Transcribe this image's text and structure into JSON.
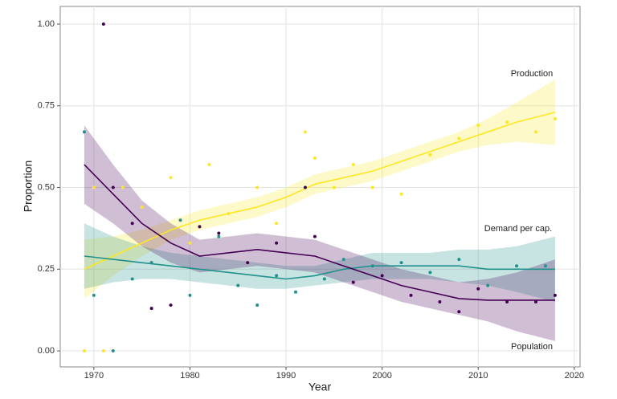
{
  "chart_data": {
    "type": "line",
    "x_label": "Year",
    "y_label": "Proportion",
    "xlim": [
      1966.5,
      2020.6
    ],
    "ylim": [
      -0.049,
      1.054
    ],
    "xticks": [
      1970,
      1980,
      1990,
      2000,
      2010,
      2020
    ],
    "yticks": [
      {
        "value": 0,
        "label": "0.00"
      },
      {
        "value": 0.25,
        "label": "0.25"
      },
      {
        "value": 0.5,
        "label": "0.50"
      },
      {
        "value": 0.75,
        "label": "0.75"
      },
      {
        "value": 1,
        "label": "1.00"
      }
    ],
    "grid": true,
    "x": [
      1969,
      1972,
      1975,
      1978,
      1981,
      1984,
      1987,
      1990,
      1993,
      1996,
      1999,
      2002,
      2005,
      2008,
      2011,
      2014,
      2018
    ],
    "series": [
      {
        "name": "Production",
        "color": "#fde725",
        "values": [
          0.25,
          0.29,
          0.33,
          0.37,
          0.4,
          0.42,
          0.44,
          0.47,
          0.51,
          0.53,
          0.55,
          0.58,
          0.61,
          0.64,
          0.67,
          0.7,
          0.73
        ],
        "lower": [
          0.16,
          0.23,
          0.29,
          0.34,
          0.37,
          0.39,
          0.41,
          0.44,
          0.48,
          0.5,
          0.52,
          0.55,
          0.58,
          0.61,
          0.63,
          0.64,
          0.63
        ],
        "upper": [
          0.34,
          0.35,
          0.37,
          0.4,
          0.43,
          0.45,
          0.47,
          0.5,
          0.54,
          0.56,
          0.58,
          0.61,
          0.64,
          0.67,
          0.71,
          0.76,
          0.83
        ],
        "points": {
          "x": [
            1969,
            1970,
            1971,
            1973,
            1975,
            1978,
            1980,
            1982,
            1984,
            1987,
            1989,
            1992,
            1993,
            1995,
            1997,
            1999,
            2002,
            2005,
            2008,
            2010,
            2013,
            2016,
            2018
          ],
          "y": [
            0,
            0.5,
            0,
            0.5,
            0.44,
            0.53,
            0.33,
            0.57,
            0.42,
            0.5,
            0.39,
            0.67,
            0.59,
            0.5,
            0.57,
            0.5,
            0.48,
            0.6,
            0.65,
            0.69,
            0.7,
            0.67,
            0.71
          ]
        }
      },
      {
        "name": "Demand per cap.",
        "color": "#21918c",
        "values": [
          0.29,
          0.28,
          0.27,
          0.26,
          0.25,
          0.24,
          0.23,
          0.22,
          0.23,
          0.25,
          0.26,
          0.26,
          0.26,
          0.26,
          0.25,
          0.25,
          0.25
        ],
        "lower": [
          0.19,
          0.21,
          0.22,
          0.22,
          0.21,
          0.2,
          0.19,
          0.19,
          0.2,
          0.21,
          0.22,
          0.22,
          0.22,
          0.21,
          0.2,
          0.18,
          0.15
        ],
        "upper": [
          0.39,
          0.35,
          0.32,
          0.3,
          0.29,
          0.28,
          0.27,
          0.26,
          0.26,
          0.28,
          0.3,
          0.3,
          0.3,
          0.31,
          0.31,
          0.32,
          0.35
        ],
        "points": {
          "x": [
            1969,
            1970,
            1972,
            1974,
            1976,
            1979,
            1980,
            1983,
            1985,
            1987,
            1989,
            1991,
            1994,
            1996,
            1999,
            2002,
            2005,
            2008,
            2011,
            2014,
            2017
          ],
          "y": [
            0.67,
            0.17,
            0,
            0.22,
            0.27,
            0.4,
            0.17,
            0.35,
            0.2,
            0.14,
            0.23,
            0.18,
            0.22,
            0.28,
            0.26,
            0.27,
            0.24,
            0.28,
            0.2,
            0.26,
            0.26
          ]
        }
      },
      {
        "name": "Population",
        "color": "#440154",
        "values": [
          0.57,
          0.48,
          0.39,
          0.33,
          0.29,
          0.3,
          0.31,
          0.3,
          0.29,
          0.26,
          0.23,
          0.2,
          0.18,
          0.16,
          0.155,
          0.155,
          0.155
        ],
        "lower": [
          0.45,
          0.39,
          0.32,
          0.27,
          0.24,
          0.25,
          0.26,
          0.25,
          0.24,
          0.21,
          0.18,
          0.15,
          0.13,
          0.11,
          0.09,
          0.06,
          0.03
        ],
        "upper": [
          0.69,
          0.57,
          0.46,
          0.39,
          0.34,
          0.35,
          0.36,
          0.35,
          0.34,
          0.31,
          0.28,
          0.25,
          0.23,
          0.21,
          0.22,
          0.24,
          0.28
        ],
        "points": {
          "x": [
            1971,
            1972,
            1974,
            1976,
            1978,
            1981,
            1983,
            1986,
            1989,
            1992,
            1993,
            1997,
            2000,
            2003,
            2006,
            2008,
            2010,
            2013,
            2016,
            2018
          ],
          "y": [
            1.0,
            0.5,
            0.39,
            0.13,
            0.14,
            0.38,
            0.36,
            0.27,
            0.33,
            0.5,
            0.35,
            0.21,
            0.23,
            0.17,
            0.15,
            0.12,
            0.19,
            0.15,
            0.15,
            0.17
          ]
        }
      }
    ]
  }
}
